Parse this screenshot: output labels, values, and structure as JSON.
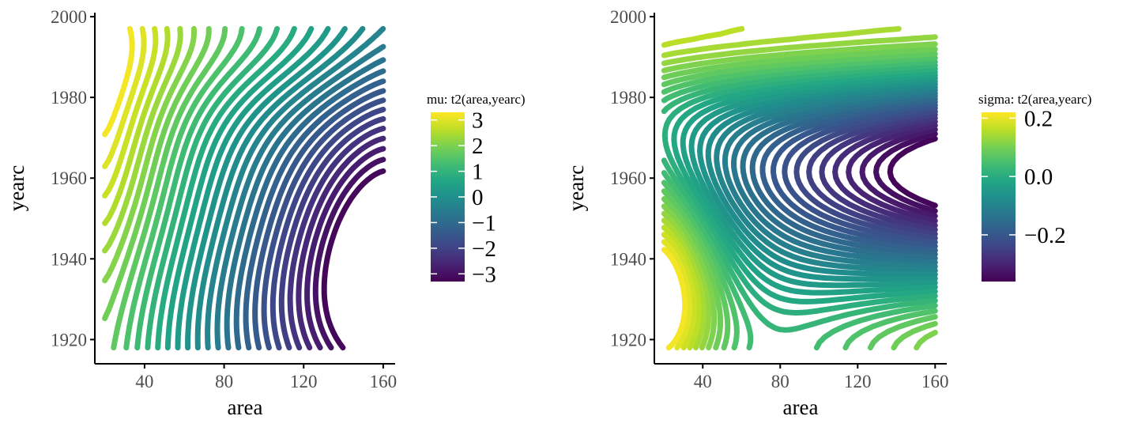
{
  "chart_data": [
    {
      "type": "heatmap",
      "subtype": "contour",
      "xlabel": "area",
      "ylabel": "yearc",
      "xticks": [
        40,
        80,
        120,
        160
      ],
      "yticks": [
        1920,
        1940,
        1960,
        1980,
        2000
      ],
      "xlim": [
        15,
        166
      ],
      "ylim": [
        1914,
        2001
      ],
      "data_xrange": [
        20,
        160
      ],
      "data_yrange": [
        1918,
        1997
      ],
      "legend": {
        "title": "mu: t2(area,yearc)",
        "ticks": [
          "3",
          "2",
          "1",
          "0",
          "−1",
          "−2",
          "−3"
        ],
        "tick_values": [
          3,
          2,
          1,
          0,
          -1,
          -2,
          -3
        ],
        "range": [
          -3.3,
          3.3
        ],
        "position": "right"
      },
      "colormap": "viridis",
      "surface": {
        "max_value": 3.2,
        "max_at": [
          20,
          1980
        ],
        "min_value": -3.2,
        "min_at": [
          160,
          1945
        ],
        "description_points": [
          {
            "area": 20,
            "yearc": 1980,
            "value": 3.2
          },
          {
            "area": 40,
            "yearc": 1960,
            "value": 1.0
          },
          {
            "area": 80,
            "yearc": 1997,
            "value": 1.2
          },
          {
            "area": 120,
            "yearc": 1960,
            "value": -1.0
          },
          {
            "area": 160,
            "yearc": 1945,
            "value": -3.2
          },
          {
            "area": 160,
            "yearc": 1918,
            "value": -2.5
          }
        ]
      }
    },
    {
      "type": "heatmap",
      "subtype": "contour",
      "xlabel": "area",
      "ylabel": "yearc",
      "xticks": [
        40,
        80,
        120,
        160
      ],
      "yticks": [
        1920,
        1940,
        1960,
        1980,
        2000
      ],
      "xlim": [
        15,
        166
      ],
      "ylim": [
        1914,
        2001
      ],
      "data_xrange": [
        20,
        160
      ],
      "data_yrange": [
        1918,
        1997
      ],
      "legend": {
        "title": "sigma: t2(area,yearc)",
        "ticks": [
          "0.2",
          "0.0",
          "−0.2"
        ],
        "tick_values": [
          0.2,
          0.0,
          -0.2
        ],
        "range": [
          -0.36,
          0.22
        ],
        "position": "right"
      },
      "colormap": "viridis",
      "surface": {
        "max_value": 0.22,
        "max_at": [
          20,
          1930
        ],
        "min_value": -0.36,
        "min_at": [
          160,
          1962
        ],
        "description_points": [
          {
            "area": 20,
            "yearc": 1930,
            "value": 0.22
          },
          {
            "area": 20,
            "yearc": 1997,
            "value": 0.1
          },
          {
            "area": 80,
            "yearc": 1997,
            "value": 0.05
          },
          {
            "area": 100,
            "yearc": 1962,
            "value": -0.18
          },
          {
            "area": 160,
            "yearc": 1962,
            "value": -0.36
          },
          {
            "area": 160,
            "yearc": 1920,
            "value": 0.1
          }
        ]
      }
    }
  ]
}
